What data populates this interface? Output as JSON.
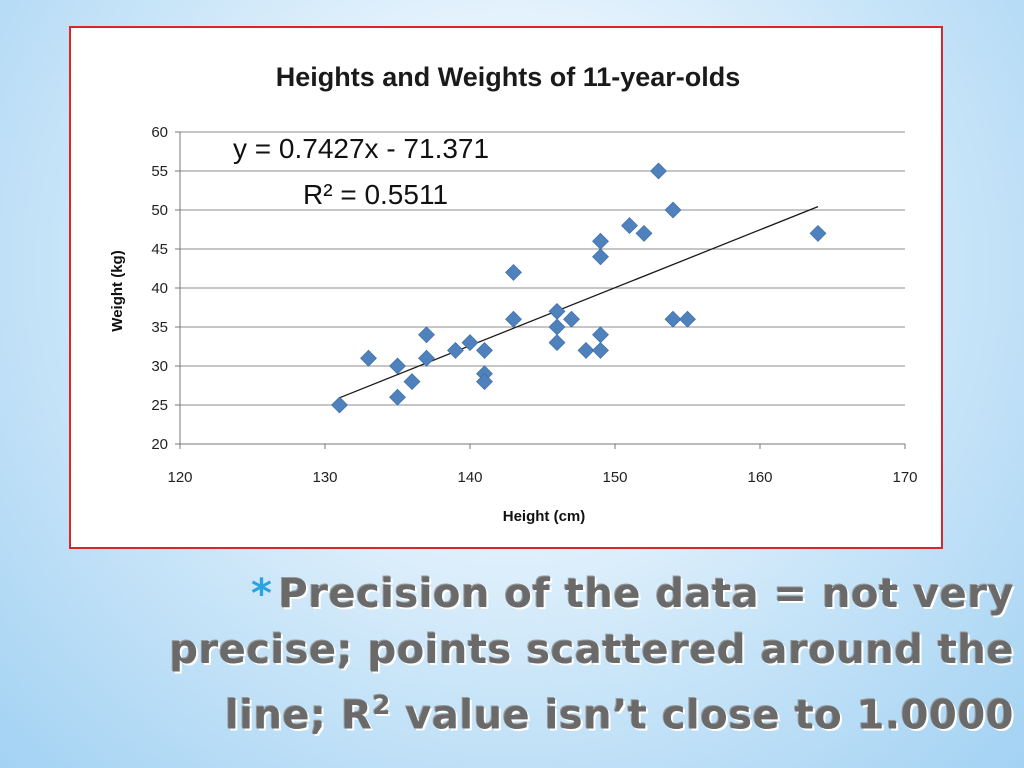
{
  "colors": {
    "frame_border": "#d9262b",
    "marker": "#4f81bd",
    "trendline": "#1a1a1a",
    "gridline": "#8c8c8c",
    "caption_text": "#6a6a6a",
    "bullet": "#2aa3e0"
  },
  "chart_data": {
    "type": "scatter",
    "title": "Heights and Weights of 11-year-olds",
    "xlabel": "Height (cm)",
    "ylabel": "Weight (kg)",
    "xlim": [
      120,
      170
    ],
    "ylim": [
      20,
      60
    ],
    "x_ticks": [
      "120",
      "130",
      "140",
      "150",
      "160",
      "170"
    ],
    "y_ticks": [
      "20",
      "25",
      "30",
      "35",
      "40",
      "45",
      "50",
      "55",
      "60"
    ],
    "grid": "horizontal",
    "legend": "none",
    "marker": "diamond",
    "points": [
      {
        "x": 131,
        "y": 25
      },
      {
        "x": 133,
        "y": 31
      },
      {
        "x": 135,
        "y": 26
      },
      {
        "x": 135,
        "y": 30
      },
      {
        "x": 136,
        "y": 28
      },
      {
        "x": 137,
        "y": 31
      },
      {
        "x": 137,
        "y": 34
      },
      {
        "x": 139,
        "y": 32
      },
      {
        "x": 140,
        "y": 33
      },
      {
        "x": 141,
        "y": 32
      },
      {
        "x": 141,
        "y": 29
      },
      {
        "x": 141,
        "y": 28
      },
      {
        "x": 143,
        "y": 42
      },
      {
        "x": 143,
        "y": 36
      },
      {
        "x": 146,
        "y": 37
      },
      {
        "x": 146,
        "y": 35
      },
      {
        "x": 146,
        "y": 33
      },
      {
        "x": 147,
        "y": 36
      },
      {
        "x": 148,
        "y": 32
      },
      {
        "x": 149,
        "y": 46
      },
      {
        "x": 149,
        "y": 44
      },
      {
        "x": 149,
        "y": 34
      },
      {
        "x": 149,
        "y": 32
      },
      {
        "x": 151,
        "y": 48
      },
      {
        "x": 152,
        "y": 47
      },
      {
        "x": 153,
        "y": 55
      },
      {
        "x": 154,
        "y": 50
      },
      {
        "x": 154,
        "y": 36
      },
      {
        "x": 155,
        "y": 36
      },
      {
        "x": 164,
        "y": 47
      }
    ],
    "trendline": {
      "slope": 0.7427,
      "intercept": -71.371,
      "x_range": [
        131,
        164
      ],
      "equation": "y = 0.7427x - 71.371",
      "r_squared_label": "R² = 0.5511"
    }
  },
  "caption": {
    "bullet": "*",
    "line1": "Precision of the data = not very",
    "line2": "precise; points scattered around the",
    "line3_prefix": "line; R",
    "line3_sup": "2",
    "line3_suffix": " value isn’t close to 1.0000"
  }
}
